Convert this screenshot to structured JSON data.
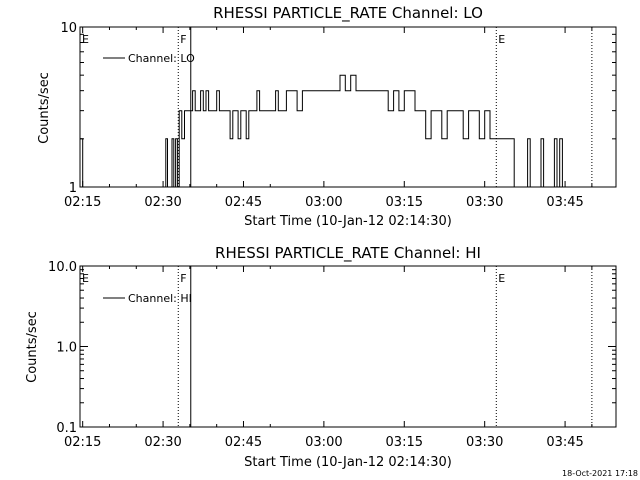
{
  "footer": {
    "timestamp": "18-Oct-2021 17:18"
  },
  "chart_data": [
    {
      "type": "line",
      "title": "RHESSI PARTICLE_RATE Channel: LO",
      "xlabel": "Start Time (10-Jan-12 02:14:30)",
      "ylabel": "Counts/sec",
      "yscale": "log",
      "ylim": [
        1,
        10
      ],
      "xlim": [
        "02:14:30",
        "03:54:30"
      ],
      "ytick_labels": [
        "1",
        "10"
      ],
      "xtick_labels": [
        "02:15",
        "02:30",
        "02:45",
        "03:00",
        "03:15",
        "03:30",
        "03:45"
      ],
      "legend": {
        "placement": "top-left",
        "label": "Channel: LO"
      },
      "flags": [
        {
          "label": "E",
          "time": "02:14:30",
          "style": "none"
        },
        {
          "label": "F",
          "time": "02:32:50",
          "style": "dotted"
        },
        {
          "label": "",
          "time": "02:35:10",
          "style": "solid"
        },
        {
          "label": "E",
          "time": "03:32:10",
          "style": "dotted"
        },
        {
          "label": "",
          "time": "03:50:00",
          "style": "dotted"
        }
      ],
      "series": [
        {
          "name": "Channel: LO",
          "x": [
            "02:14:30",
            "02:15:00",
            "02:15:30",
            "02:30:00",
            "02:30:30",
            "02:30:50",
            "02:31:20",
            "02:31:40",
            "02:32:00",
            "02:32:20",
            "02:32:40",
            "02:33:00",
            "02:33:30",
            "02:34:00",
            "02:34:30",
            "02:35:00",
            "02:35:30",
            "02:36:00",
            "02:36:30",
            "02:37:00",
            "02:37:30",
            "02:38:00",
            "02:38:30",
            "02:39:00",
            "02:39:30",
            "02:40:00",
            "02:40:30",
            "02:41:00",
            "02:41:30",
            "02:42:00",
            "02:42:30",
            "02:43:00",
            "02:43:30",
            "02:44:00",
            "02:44:30",
            "02:45:00",
            "02:45:30",
            "02:46:00",
            "02:46:30",
            "02:47:00",
            "02:47:30",
            "02:48:00",
            "02:48:30",
            "02:49:00",
            "02:49:30",
            "02:50:00",
            "02:50:30",
            "02:51:00",
            "02:51:30",
            "02:52:00",
            "02:52:30",
            "02:53:00",
            "02:54:00",
            "02:55:00",
            "02:56:00",
            "02:57:00",
            "02:58:00",
            "02:59:00",
            "03:00:00",
            "03:01:00",
            "03:02:00",
            "03:03:00",
            "03:04:00",
            "03:05:00",
            "03:06:00",
            "03:07:00",
            "03:08:00",
            "03:09:00",
            "03:10:00",
            "03:11:00",
            "03:12:00",
            "03:13:00",
            "03:14:00",
            "03:15:00",
            "03:16:00",
            "03:17:00",
            "03:18:00",
            "03:19:00",
            "03:20:00",
            "03:21:00",
            "03:22:00",
            "03:23:00",
            "03:24:00",
            "03:25:00",
            "03:26:00",
            "03:27:00",
            "03:28:00",
            "03:29:00",
            "03:30:00",
            "03:31:00",
            "03:32:00",
            "03:33:00",
            "03:34:00",
            "03:35:00",
            "03:35:30",
            "03:36:00",
            "03:36:30",
            "03:37:00",
            "03:37:30",
            "03:38:00",
            "03:38:30",
            "03:39:00",
            "03:39:30",
            "03:40:00",
            "03:40:30",
            "03:41:00",
            "03:41:30",
            "03:42:00",
            "03:42:30",
            "03:43:00",
            "03:43:30",
            "03:44:00",
            "03:44:30",
            "03:45:00",
            "03:45:30",
            "03:46:00",
            "03:46:30",
            "03:47:00",
            "03:47:30",
            "03:48:00"
          ],
          "values": [
            2,
            1,
            1,
            1,
            2,
            1,
            1,
            2,
            1,
            2,
            1,
            3,
            2,
            3,
            3,
            3,
            4,
            3,
            3,
            4,
            3,
            4,
            3,
            3,
            3,
            4,
            3,
            3,
            3,
            3,
            2,
            3,
            3,
            2,
            3,
            3,
            2,
            3,
            3,
            3,
            4,
            3,
            3,
            3,
            3,
            3,
            3,
            4,
            3,
            3,
            3,
            4,
            4,
            3,
            4,
            4,
            4,
            4,
            4,
            4,
            4,
            5,
            4,
            5,
            4,
            4,
            4,
            4,
            4,
            4,
            3,
            4,
            3,
            4,
            4,
            3,
            3,
            2,
            3,
            3,
            2,
            3,
            3,
            3,
            2,
            3,
            3,
            2,
            3,
            2,
            2,
            2,
            2,
            2,
            1,
            1,
            1,
            1,
            1,
            2,
            1,
            1,
            1,
            1,
            2,
            1,
            1,
            1,
            1,
            2,
            1,
            2,
            1,
            1,
            1,
            1,
            1,
            1,
            1,
            1
          ]
        }
      ]
    },
    {
      "type": "line",
      "title": "RHESSI PARTICLE_RATE Channel: HI",
      "xlabel": "Start Time (10-Jan-12 02:14:30)",
      "ylabel": "Counts/sec",
      "yscale": "log",
      "ylim": [
        0.1,
        10
      ],
      "xlim": [
        "02:14:30",
        "03:54:30"
      ],
      "ytick_labels": [
        "0.1",
        "1.0",
        "10.0"
      ],
      "xtick_labels": [
        "02:15",
        "02:30",
        "02:45",
        "03:00",
        "03:15",
        "03:30",
        "03:45"
      ],
      "legend": {
        "placement": "top-left",
        "label": "Channel: HI"
      },
      "flags": [
        {
          "label": "E",
          "time": "02:14:30",
          "style": "none"
        },
        {
          "label": "F",
          "time": "02:32:50",
          "style": "dotted"
        },
        {
          "label": "",
          "time": "02:35:10",
          "style": "solid"
        },
        {
          "label": "E",
          "time": "03:32:10",
          "style": "dotted"
        },
        {
          "label": "",
          "time": "03:50:00",
          "style": "dotted"
        }
      ],
      "series": [
        {
          "name": "Channel: HI",
          "x": [],
          "values": []
        }
      ]
    }
  ]
}
